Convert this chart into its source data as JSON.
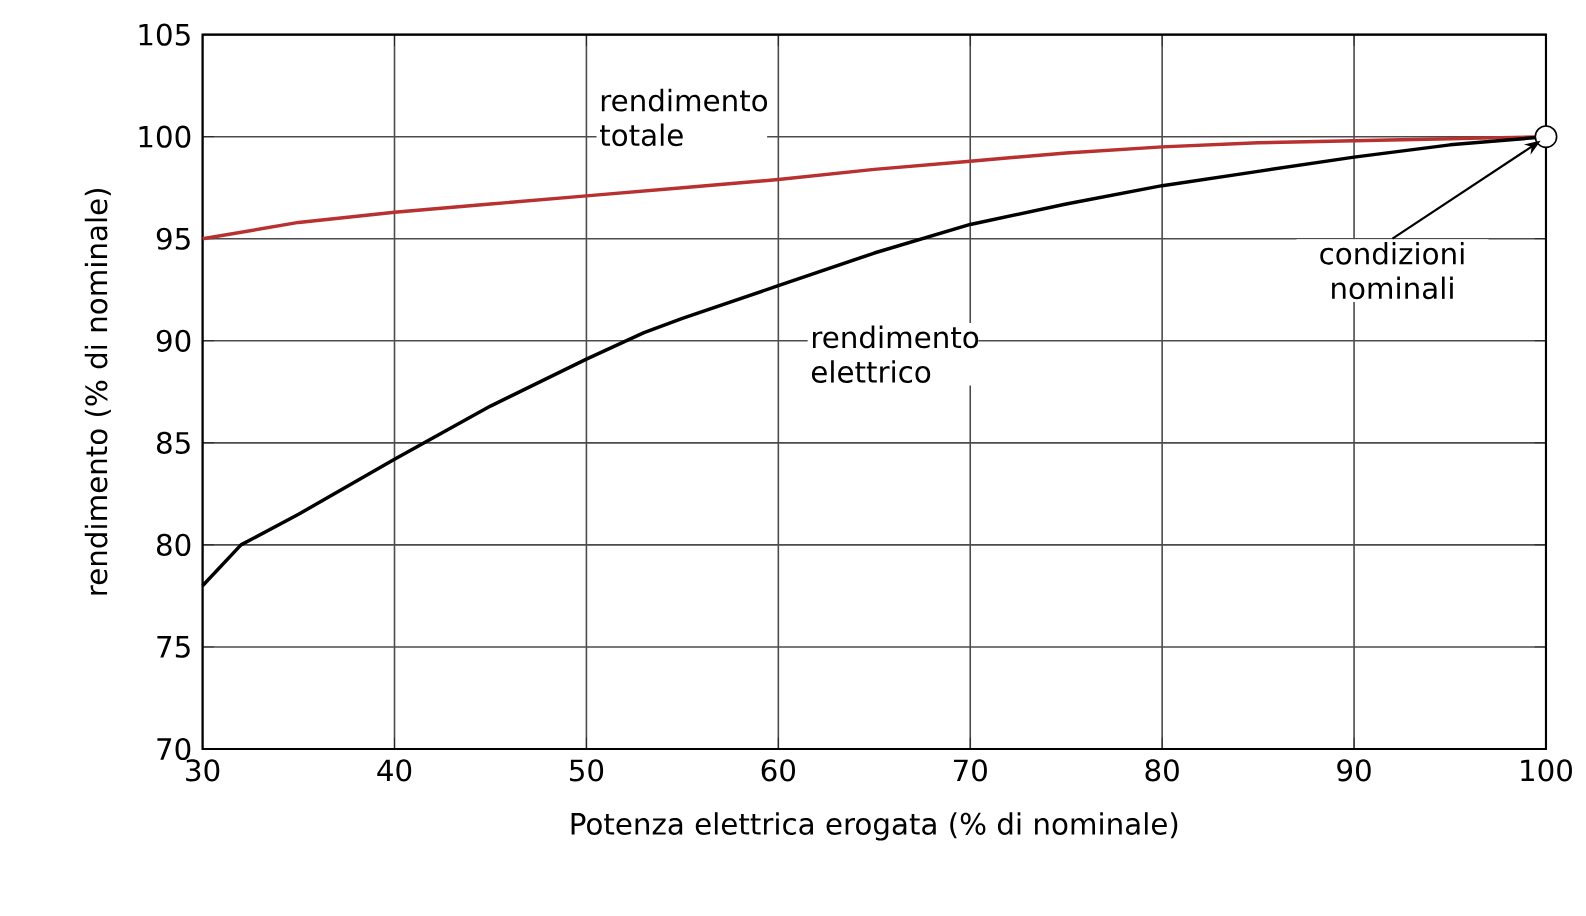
{
  "chart_data": {
    "type": "line",
    "xlabel": "Potenza elettrica erogata (% di nominale)",
    "ylabel": "rendimento (% di nominale)",
    "xlim": [
      30,
      100
    ],
    "ylim": [
      70,
      105
    ],
    "xticks": [
      30,
      40,
      50,
      60,
      70,
      80,
      90,
      100
    ],
    "yticks": [
      70,
      75,
      80,
      85,
      90,
      95,
      100,
      105
    ],
    "grid": true,
    "legend": false,
    "marker": "none",
    "line_style": "solid",
    "series": [
      {
        "name": "rendimento totale",
        "color": "#b83030",
        "x": [
          30,
          35,
          40,
          45,
          50,
          55,
          60,
          65,
          70,
          75,
          80,
          85,
          90,
          95,
          100
        ],
        "values": [
          95.0,
          95.8,
          96.3,
          96.7,
          97.1,
          97.5,
          97.9,
          98.4,
          98.8,
          99.2,
          99.5,
          99.7,
          99.8,
          99.9,
          100.0
        ]
      },
      {
        "name": "rendimento elettrico",
        "color": "#000000",
        "x": [
          30,
          32,
          35,
          40,
          45,
          50,
          53,
          55,
          60,
          65,
          70,
          75,
          80,
          85,
          90,
          95,
          100
        ],
        "values": [
          78.0,
          80.0,
          81.5,
          84.2,
          86.8,
          89.1,
          90.4,
          91.1,
          92.7,
          94.3,
          95.7,
          96.7,
          97.6,
          98.3,
          99.0,
          99.6,
          100.0
        ]
      }
    ],
    "annotations": [
      {
        "text": "condizioni nominali",
        "x": 100,
        "y": 100
      }
    ]
  }
}
